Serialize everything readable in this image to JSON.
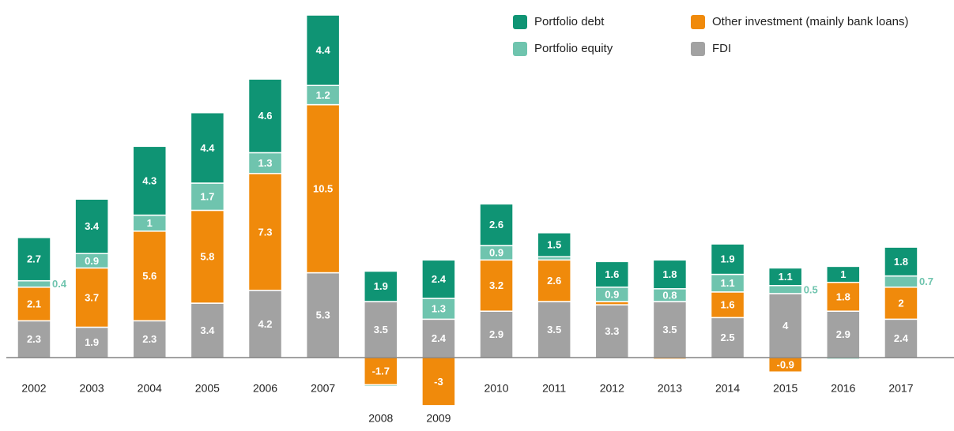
{
  "chart_data": {
    "type": "stacked_bar",
    "categories": [
      "2002",
      "2003",
      "2004",
      "2005",
      "2006",
      "2007",
      "2008",
      "2009",
      "2010",
      "2011",
      "2012",
      "2013",
      "2014",
      "2015",
      "2016",
      "2017"
    ],
    "series": [
      {
        "name": "FDI",
        "color": "#a2a2a2",
        "values": [
          2.3,
          1.9,
          2.3,
          3.4,
          4.2,
          5.3,
          3.5,
          2.4,
          2.9,
          3.5,
          3.3,
          3.5,
          2.5,
          4.0,
          2.9,
          2.4
        ]
      },
      {
        "name": "Other investment (mainly bank loans)",
        "color": "#f08a0b",
        "values": [
          2.1,
          3.7,
          5.6,
          5.8,
          7.3,
          10.5,
          -1.7,
          -3.0,
          3.2,
          2.6,
          0.2,
          -0.1,
          1.6,
          -0.9,
          1.8,
          2.0
        ]
      },
      {
        "name": "Portfolio equity",
        "color": "#6fc4ae",
        "values": [
          0.4,
          0.9,
          1.0,
          1.7,
          1.3,
          1.2,
          -0.1,
          1.3,
          0.9,
          0.2,
          0.9,
          0.8,
          1.1,
          0.5,
          -0.1,
          0.7
        ]
      },
      {
        "name": "Portfolio debt",
        "color": "#0f9474",
        "values": [
          2.7,
          3.4,
          4.3,
          4.4,
          4.6,
          4.4,
          1.9,
          2.4,
          2.6,
          1.5,
          1.6,
          1.8,
          1.9,
          1.1,
          1.0,
          1.8
        ]
      }
    ],
    "ylim": [
      -3.5,
      21.5
    ]
  }
}
